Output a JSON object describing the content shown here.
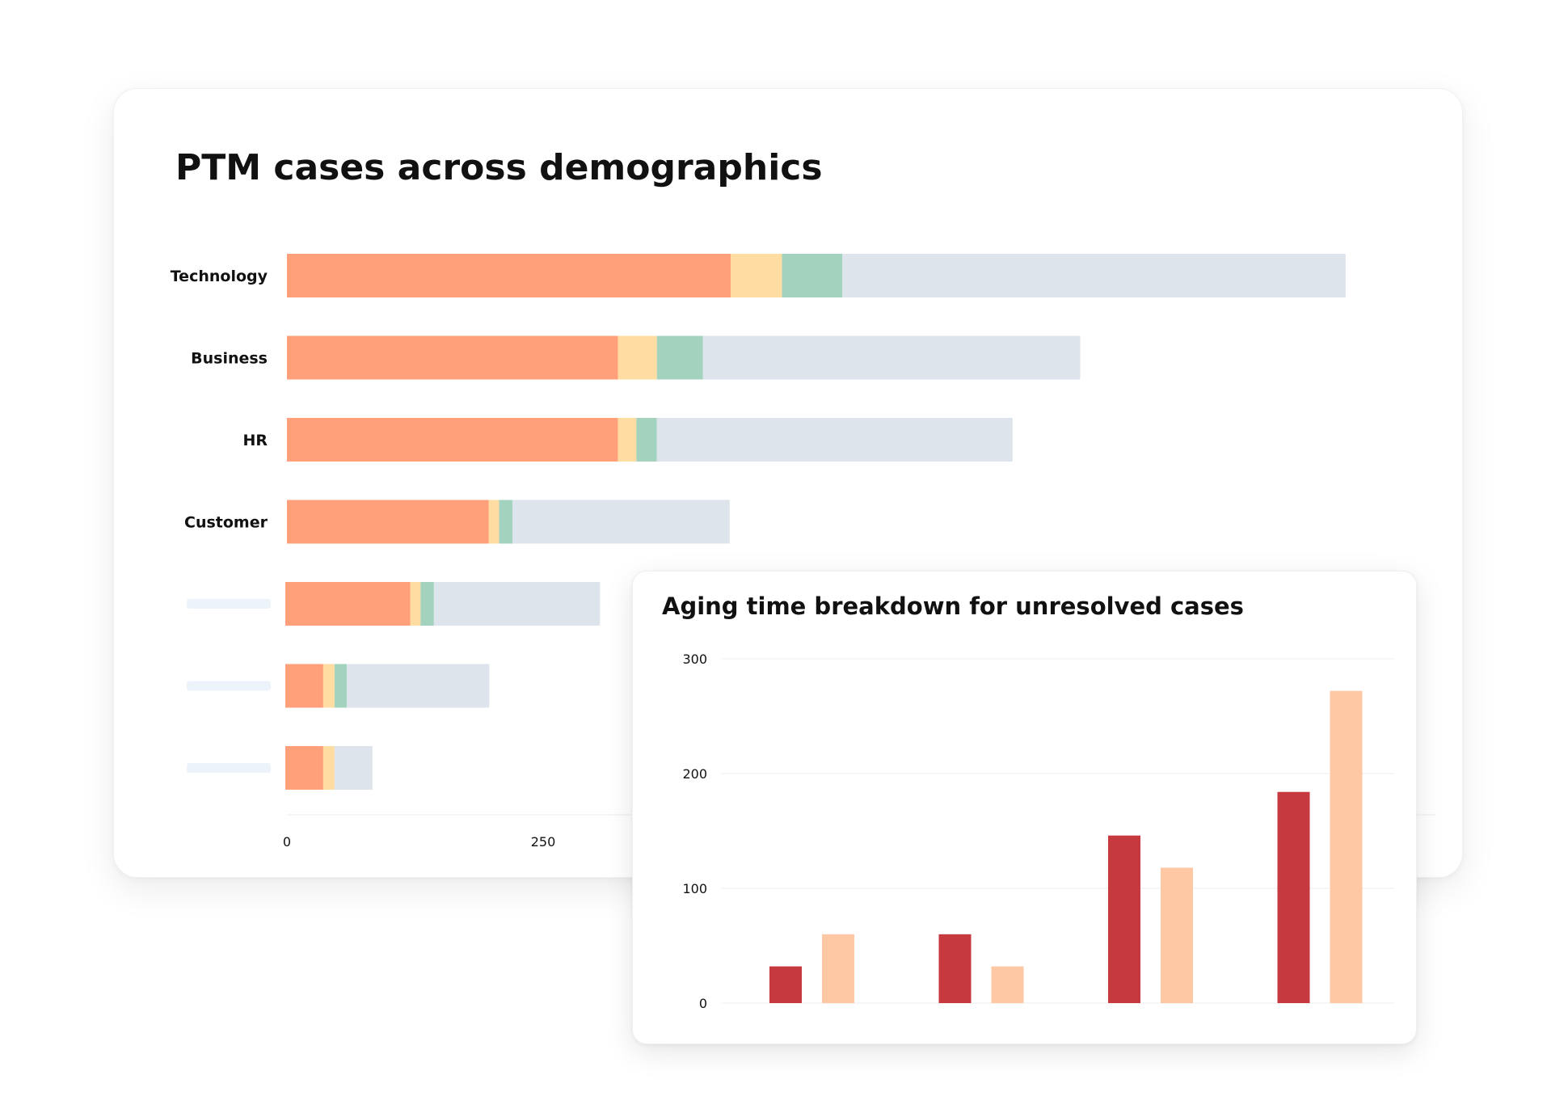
{
  "chart_data": [
    {
      "type": "bar",
      "orientation": "horizontal",
      "stacked": true,
      "title": "PTM cases across demographics",
      "categories": [
        "Technology",
        "Business",
        "HR",
        "Customer",
        "",
        "",
        ""
      ],
      "series": [
        {
          "color": "#FFA07A",
          "values": [
            433,
            323,
            323,
            197,
            122,
            37,
            37
          ]
        },
        {
          "color": "#FFDCA2",
          "values": [
            50,
            38,
            18,
            10,
            10,
            11,
            11
          ]
        },
        {
          "color": "#A3D3BE",
          "values": [
            59,
            45,
            20,
            13,
            13,
            12,
            0
          ]
        },
        {
          "color": "#DDE4EC",
          "values": [
            491,
            368,
            347,
            212,
            162,
            139,
            37
          ]
        }
      ],
      "x_ticks": [
        "0",
        "250"
      ],
      "xlim": [
        0,
        1100
      ],
      "grid": false,
      "legend": "none"
    },
    {
      "type": "bar",
      "title": "Aging time breakdown for unresolved cases",
      "categories": [
        "",
        "",
        "",
        ""
      ],
      "series": [
        {
          "color": "#C5393F",
          "values": [
            32,
            60,
            146,
            184
          ]
        },
        {
          "color": "#FFC8A5",
          "values": [
            60,
            32,
            118,
            272
          ]
        }
      ],
      "y_ticks": [
        "0",
        "100",
        "200",
        "300"
      ],
      "ylim": [
        0,
        300
      ],
      "grid": true,
      "legend": "none"
    }
  ]
}
